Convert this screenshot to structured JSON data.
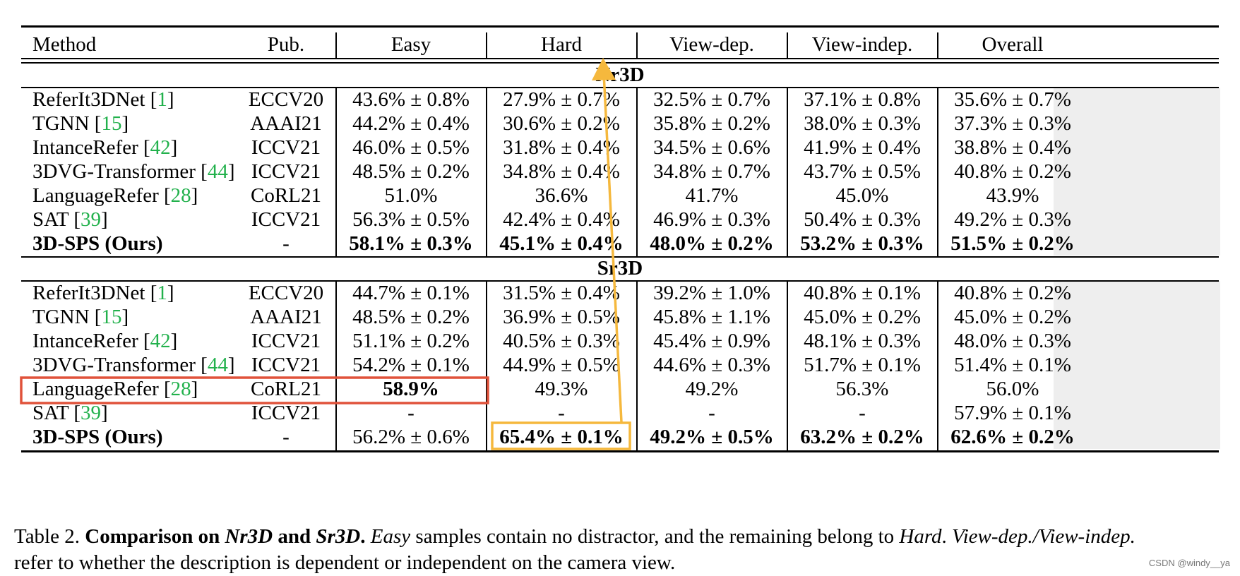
{
  "table": {
    "columns": [
      "Method",
      "Pub.",
      "Easy",
      "Hard",
      "View-dep.",
      "View-indep.",
      "Overall"
    ],
    "sections": [
      {
        "name": "Nr3D",
        "rows": [
          {
            "method": "ReferIt3DNet",
            "ref": "1",
            "pub": "ECCV20",
            "easy": "43.6% ± 0.8%",
            "hard": "27.9% ± 0.7%",
            "view_dep": "32.5% ± 0.7%",
            "view_indep": "37.1% ± 0.8%",
            "overall": "35.6% ± 0.7%",
            "bold": false
          },
          {
            "method": "TGNN",
            "ref": "15",
            "pub": "AAAI21",
            "easy": "44.2% ± 0.4%",
            "hard": "30.6% ± 0.2%",
            "view_dep": "35.8% ± 0.2%",
            "view_indep": "38.0% ± 0.3%",
            "overall": "37.3% ± 0.3%",
            "bold": false
          },
          {
            "method": "IntanceRefer",
            "ref": "42",
            "pub": "ICCV21",
            "easy": "46.0% ± 0.5%",
            "hard": "31.8% ± 0.4%",
            "view_dep": "34.5% ± 0.6%",
            "view_indep": "41.9% ± 0.4%",
            "overall": "38.8% ± 0.4%",
            "bold": false
          },
          {
            "method": "3DVG-Transformer",
            "ref": "44",
            "pub": "ICCV21",
            "easy": "48.5% ± 0.2%",
            "hard": "34.8% ± 0.4%",
            "view_dep": "34.8% ± 0.7%",
            "view_indep": "43.7% ± 0.5%",
            "overall": "40.8% ± 0.2%",
            "bold": false
          },
          {
            "method": "LanguageRefer",
            "ref": "28",
            "pub": "CoRL21",
            "easy": "51.0%",
            "hard": "36.6%",
            "view_dep": "41.7%",
            "view_indep": "45.0%",
            "overall": "43.9%",
            "bold": false
          },
          {
            "method": "SAT",
            "ref": "39",
            "pub": "ICCV21",
            "easy": "56.3% ± 0.5%",
            "hard": "42.4% ± 0.4%",
            "view_dep": "46.9% ± 0.3%",
            "view_indep": "50.4% ± 0.3%",
            "overall": "49.2% ± 0.3%",
            "bold": false
          },
          {
            "method": "3D-SPS (Ours)",
            "ref": "",
            "pub": "-",
            "easy": "58.1% ± 0.3%",
            "hard": "45.1% ± 0.4%",
            "view_dep": "48.0% ± 0.2%",
            "view_indep": "53.2% ± 0.3%",
            "overall": "51.5% ± 0.2%",
            "bold": true
          }
        ]
      },
      {
        "name": "Sr3D",
        "rows": [
          {
            "method": "ReferIt3DNet",
            "ref": "1",
            "pub": "ECCV20",
            "easy": "44.7% ± 0.1%",
            "hard": "31.5% ± 0.4%",
            "view_dep": "39.2% ± 1.0%",
            "view_indep": "40.8% ± 0.1%",
            "overall": "40.8% ± 0.2%",
            "bold": false
          },
          {
            "method": "TGNN",
            "ref": "15",
            "pub": "AAAI21",
            "easy": "48.5% ± 0.2%",
            "hard": "36.9% ± 0.5%",
            "view_dep": "45.8% ± 1.1%",
            "view_indep": "45.0% ± 0.2%",
            "overall": "45.0% ± 0.2%",
            "bold": false
          },
          {
            "method": "IntanceRefer",
            "ref": "42",
            "pub": "ICCV21",
            "easy": "51.1% ± 0.2%",
            "hard": "40.5% ± 0.3%",
            "view_dep": "45.4% ± 0.9%",
            "view_indep": "48.1% ± 0.3%",
            "overall": "48.0% ± 0.3%",
            "bold": false
          },
          {
            "method": "3DVG-Transformer",
            "ref": "44",
            "pub": "ICCV21",
            "easy": "54.2% ± 0.1%",
            "hard": "44.9% ± 0.5%",
            "view_dep": "44.6% ± 0.3%",
            "view_indep": "51.7% ± 0.1%",
            "overall": "51.4% ± 0.1%",
            "bold": false
          },
          {
            "method": "LanguageRefer",
            "ref": "28",
            "pub": "CoRL21",
            "easy": "58.9%",
            "hard": "49.3%",
            "view_dep": "49.2%",
            "view_indep": "56.3%",
            "overall": "56.0%",
            "bold": false,
            "bold_easy": true
          },
          {
            "method": "SAT",
            "ref": "39",
            "pub": "ICCV21",
            "easy": "-",
            "hard": "-",
            "view_dep": "-",
            "view_indep": "-",
            "overall": "57.9% ± 0.1%",
            "bold": false
          },
          {
            "method": "3D-SPS (Ours)",
            "ref": "",
            "pub": "-",
            "easy": "56.2% ± 0.6%",
            "hard": "65.4% ± 0.1%",
            "view_dep": "49.2% ± 0.5%",
            "view_indep": "63.2% ± 0.2%",
            "overall": "62.6% ± 0.2%",
            "bold": true,
            "plain_easy": true
          }
        ]
      }
    ]
  },
  "caption": {
    "label": "Table 2.",
    "bold_a": "Comparison on",
    "nr3d": "Nr3D",
    "bold_and": "and",
    "sr3d": "Sr3D",
    "easy": "Easy",
    "text1": "samples contain no distractor, and the remaining belong to",
    "hard": "Hard",
    "views": "View-dep./View-indep.",
    "line2": "refer to whether the description is dependent or independent on the camera view."
  },
  "watermark": "CSDN @windy__ya",
  "annotation_colors": {
    "red_box": "#e0523a",
    "yellow": "#f5b83d",
    "ref_green": "#22b14c",
    "overall_shade": "#eeeeee"
  }
}
